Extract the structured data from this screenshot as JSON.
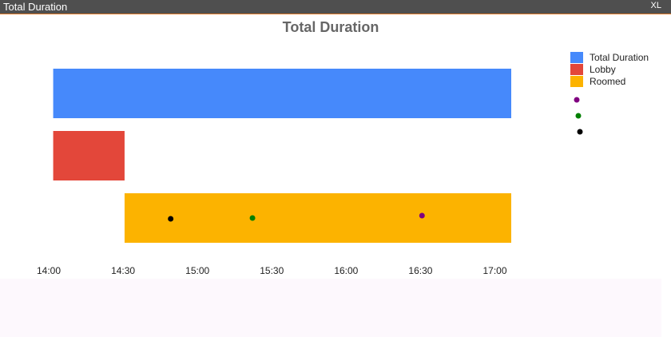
{
  "window_title": "Total Duration",
  "window_button": "XL",
  "chart_data": {
    "type": "range-bar",
    "title": "Total Duration",
    "series": [
      {
        "name": "Total Duration",
        "color": "#4689fb",
        "values": [
          14.03,
          17.11
        ]
      },
      {
        "name": "Lobby",
        "color": "#e3473a",
        "values": [
          14.03,
          14.51
        ]
      },
      {
        "name": "Roomed",
        "color": "#fcb300",
        "values": [
          14.51,
          17.11
        ]
      }
    ],
    "points": [
      {
        "color": "#800080",
        "x": 16.51
      },
      {
        "color": "#008000",
        "x": 15.37
      },
      {
        "color": "#000000",
        "x": 14.82
      }
    ],
    "xlim": [
      14,
      17.11
    ],
    "xticks": [
      {
        "value": 14,
        "label": "14:00"
      },
      {
        "value": 14.5,
        "label": "14:30"
      },
      {
        "value": 15,
        "label": "15:00"
      },
      {
        "value": 15.5,
        "label": "15:30"
      },
      {
        "value": 16,
        "label": "16:00"
      },
      {
        "value": 16.5,
        "label": "16:30"
      },
      {
        "value": 17,
        "label": "17:00"
      }
    ]
  }
}
